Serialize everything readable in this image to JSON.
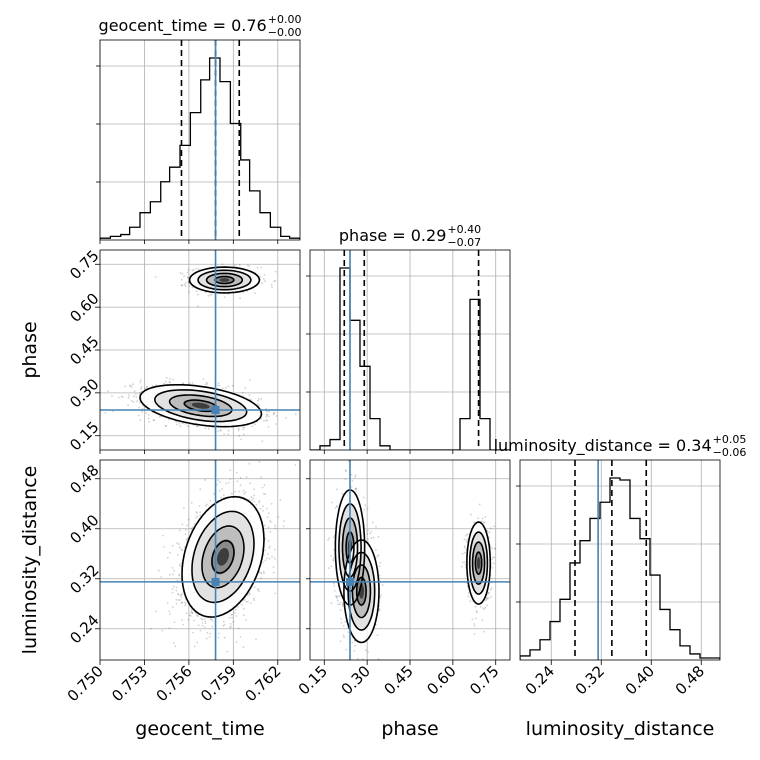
{
  "chart_data": {
    "type": "corner",
    "truth_color": "#4682b4",
    "parameters": [
      {
        "name": "geocent_time",
        "title_value": "0.76",
        "title_plus": "+0.00",
        "title_minus": "−0.00",
        "range": [
          0.75,
          0.7635
        ],
        "ticks": [
          0.75,
          0.753,
          0.756,
          0.759,
          0.762
        ],
        "tick_labels": [
          "0.750",
          "0.753",
          "0.756",
          "0.759",
          "0.762"
        ],
        "quantiles": [
          0.7555,
          0.7578,
          0.7594
        ],
        "truth": 0.7578,
        "hist_edges": [
          0.75,
          0.7507,
          0.7514,
          0.752,
          0.7527,
          0.7534,
          0.7541,
          0.7547,
          0.7554,
          0.7561,
          0.7568,
          0.7574,
          0.7581,
          0.7588,
          0.7595,
          0.7601,
          0.7608,
          0.7615,
          0.7622,
          0.7628,
          0.7635
        ],
        "hist_counts": [
          1,
          2,
          3,
          7,
          15,
          21,
          32,
          40,
          52,
          70,
          88,
          100,
          87,
          64,
          44,
          27,
          15,
          7,
          2,
          1
        ]
      },
      {
        "name": "phase",
        "title_value": "0.29",
        "title_plus": "+0.40",
        "title_minus": "−0.07",
        "range": [
          0.1,
          0.8
        ],
        "ticks": [
          0.15,
          0.3,
          0.45,
          0.6,
          0.75
        ],
        "tick_labels": [
          "0.15",
          "0.30",
          "0.45",
          "0.60",
          "0.75"
        ],
        "quantiles": [
          0.22,
          0.29,
          0.69
        ],
        "truth": 0.24,
        "hist_edges": [
          0.1,
          0.135,
          0.17,
          0.205,
          0.24,
          0.275,
          0.31,
          0.345,
          0.38,
          0.415,
          0.45,
          0.485,
          0.52,
          0.555,
          0.59,
          0.625,
          0.66,
          0.695,
          0.73,
          0.765,
          0.8
        ],
        "hist_counts": [
          0,
          2,
          5,
          87,
          62,
          40,
          15,
          2,
          0,
          0,
          0,
          0,
          0,
          0,
          0,
          15,
          72,
          15,
          0,
          0
        ]
      },
      {
        "name": "luminosity_distance",
        "title_value": "0.34",
        "title_plus": "+0.05",
        "title_minus": "−0.06",
        "range": [
          0.19,
          0.51
        ],
        "ticks": [
          0.24,
          0.32,
          0.4,
          0.48
        ],
        "tick_labels": [
          "0.24",
          "0.32",
          "0.40",
          "0.48"
        ],
        "quantiles": [
          0.278,
          0.337,
          0.392
        ],
        "truth": 0.315,
        "hist_edges": [
          0.19,
          0.206,
          0.222,
          0.238,
          0.254,
          0.27,
          0.286,
          0.302,
          0.318,
          0.334,
          0.35,
          0.366,
          0.382,
          0.398,
          0.414,
          0.43,
          0.446,
          0.462,
          0.478,
          0.494,
          0.51
        ],
        "hist_counts": [
          2,
          5,
          10,
          19,
          30,
          48,
          59,
          70,
          78,
          90,
          89,
          70,
          60,
          42,
          25,
          15,
          7,
          3,
          1,
          1
        ]
      }
    ],
    "y_ticks": {
      "phase": {
        "ticks": [
          0.15,
          0.3,
          0.45,
          0.6,
          0.75
        ],
        "tick_labels": [
          "0.15",
          "0.30",
          "0.45",
          "0.60",
          "0.75"
        ]
      },
      "luminosity_distance": {
        "ticks": [
          0.24,
          0.32,
          0.4,
          0.48
        ],
        "tick_labels": [
          "0.24",
          "0.32",
          "0.40",
          "0.48"
        ]
      }
    },
    "panels_2d": [
      {
        "x": "geocent_time",
        "y": "phase",
        "modes": [
          {
            "cx": 0.7584,
            "cy": 0.695,
            "sx": 0.00115,
            "sy": 0.022,
            "w": 0.35
          },
          {
            "cx": 0.7568,
            "cy": 0.255,
            "sx": 0.002,
            "sy": 0.033,
            "w": 0.65,
            "tilt": -0.42
          }
        ]
      },
      {
        "x": "geocent_time",
        "y": "luminosity_distance",
        "modes": [
          {
            "cx": 0.7583,
            "cy": 0.355,
            "sx": 0.00135,
            "sy": 0.045,
            "w": 1.0,
            "tilt": 0.3
          }
        ]
      },
      {
        "x": "phase",
        "y": "luminosity_distance",
        "modes": [
          {
            "cx": 0.24,
            "cy": 0.37,
            "sx": 0.025,
            "sy": 0.045,
            "w": 0.35
          },
          {
            "cx": 0.28,
            "cy": 0.3,
            "sx": 0.03,
            "sy": 0.04,
            "w": 0.3
          },
          {
            "cx": 0.69,
            "cy": 0.345,
            "sx": 0.02,
            "sy": 0.032,
            "w": 0.35
          }
        ]
      }
    ]
  }
}
